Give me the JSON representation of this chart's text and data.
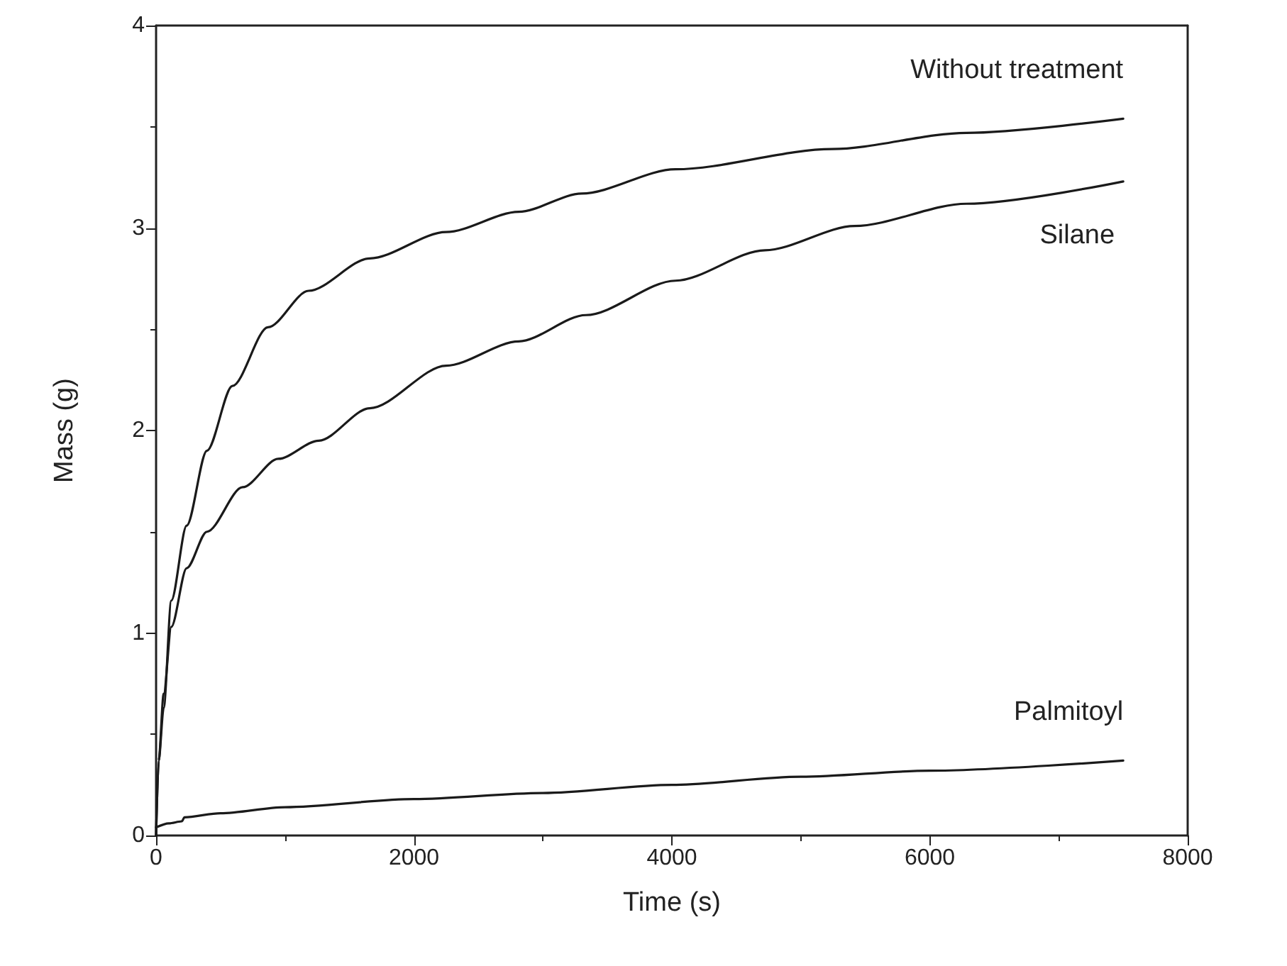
{
  "chart_data": {
    "type": "line",
    "xlabel": "Time (s)",
    "ylabel": "Mass (g)",
    "xlim": [
      0,
      8000
    ],
    "xticks": [
      0,
      2000,
      4000,
      6000,
      8000
    ],
    "ylim": [
      0,
      4
    ],
    "yticks": [
      0,
      1,
      2,
      3,
      4
    ],
    "grid": false,
    "legend": false,
    "marker": "none",
    "line_style": "solid",
    "series": [
      {
        "name": "Without treatment",
        "color": "#1a1a1a",
        "x": [
          0,
          20,
          59,
          118,
          237,
          394,
          592,
          868,
          1183,
          1657,
          2249,
          2812,
          3300,
          4028,
          5243,
          6285,
          7500
        ],
        "values": [
          0,
          0.37,
          0.63,
          1.16,
          1.53,
          1.9,
          2.22,
          2.51,
          2.69,
          2.85,
          2.98,
          3.08,
          3.17,
          3.29,
          3.39,
          3.47,
          3.54
        ]
      },
      {
        "name": "Silane",
        "color": "#1a1a1a",
        "x": [
          0,
          20,
          59,
          118,
          237,
          394,
          671,
          947,
          1262,
          1657,
          2249,
          2812,
          3333,
          4028,
          4722,
          5417,
          6285,
          7500
        ],
        "values": [
          0,
          0.37,
          0.7,
          1.03,
          1.32,
          1.5,
          1.72,
          1.86,
          1.95,
          2.11,
          2.32,
          2.44,
          2.57,
          2.74,
          2.89,
          3.01,
          3.12,
          3.23
        ]
      },
      {
        "name": "Palmitoyl",
        "color": "#1a1a1a",
        "x": [
          0,
          100,
          200,
          220,
          500,
          1000,
          2000,
          3000,
          4000,
          5000,
          6000,
          7500
        ],
        "values": [
          0.04,
          0.06,
          0.07,
          0.09,
          0.11,
          0.14,
          0.18,
          0.21,
          0.25,
          0.29,
          0.32,
          0.37
        ]
      }
    ]
  }
}
